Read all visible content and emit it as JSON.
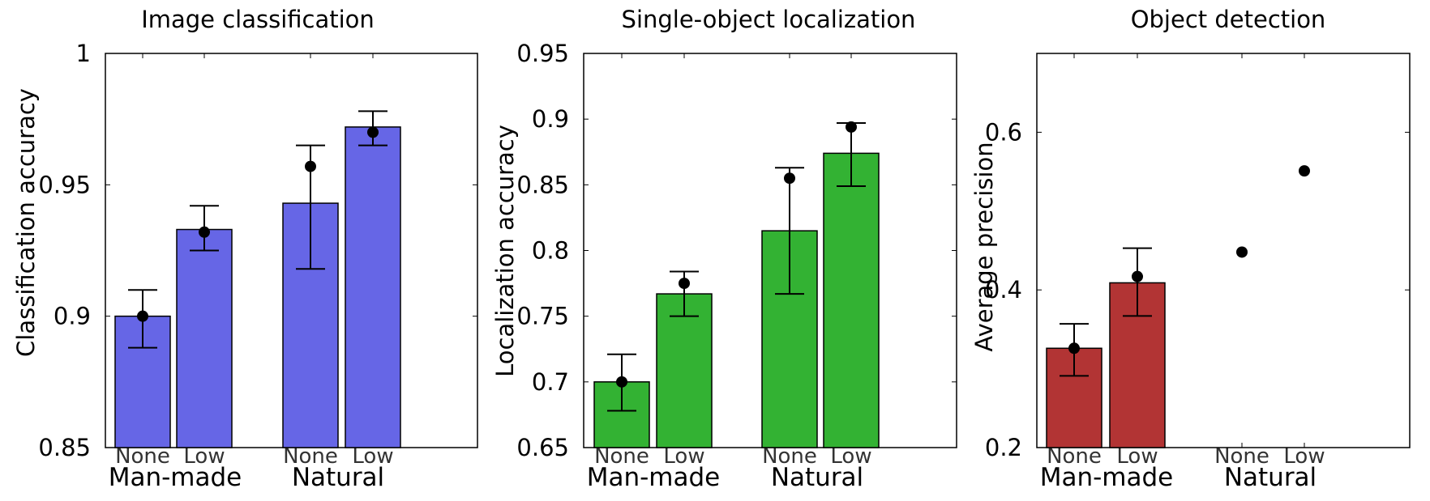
{
  "colors": {
    "classification": "#6666e6",
    "localization": "#33b233",
    "detection": "#b23434",
    "marker": "#000000"
  },
  "chart_data": [
    {
      "type": "bar",
      "title": "Image classification",
      "ylabel": "Classification accuracy",
      "ylim": [
        0.85,
        1.0
      ],
      "yticks": [
        0.85,
        0.9,
        0.95,
        1
      ],
      "ytick_labels": [
        "0.85",
        "0.9",
        "0.95",
        "1"
      ],
      "categories": [
        "None",
        "Low",
        "None",
        "Low"
      ],
      "groups": [
        "Man-made",
        "Natural"
      ],
      "series": [
        {
          "name": "bar",
          "values": [
            0.9,
            0.933,
            0.943,
            0.972
          ]
        },
        {
          "name": "marker",
          "values": [
            0.9,
            0.932,
            0.957,
            0.97
          ]
        },
        {
          "name": "error_low",
          "values": [
            0.888,
            0.925,
            0.918,
            0.965
          ]
        },
        {
          "name": "error_high",
          "values": [
            0.91,
            0.942,
            0.965,
            0.978
          ]
        }
      ]
    },
    {
      "type": "bar",
      "title": "Single-object localization",
      "ylabel": "Localization accuracy",
      "ylim": [
        0.65,
        0.95
      ],
      "yticks": [
        0.65,
        0.7,
        0.75,
        0.8,
        0.85,
        0.9,
        0.95
      ],
      "ytick_labels": [
        "0.65",
        "0.7",
        "0.75",
        "0.8",
        "0.85",
        "0.9",
        "0.95"
      ],
      "categories": [
        "None",
        "Low",
        "None",
        "Low"
      ],
      "groups": [
        "Man-made",
        "Natural"
      ],
      "series": [
        {
          "name": "bar",
          "values": [
            0.7,
            0.767,
            0.815,
            0.874
          ]
        },
        {
          "name": "marker",
          "values": [
            0.7,
            0.775,
            0.855,
            0.894
          ]
        },
        {
          "name": "error_low",
          "values": [
            0.678,
            0.75,
            0.767,
            0.849
          ]
        },
        {
          "name": "error_high",
          "values": [
            0.721,
            0.784,
            0.863,
            0.897
          ]
        }
      ]
    },
    {
      "type": "bar",
      "title": "Object detection",
      "ylabel": "Average precision",
      "ylim": [
        0.2,
        0.7
      ],
      "yticks": [
        0.2,
        0.4,
        0.6
      ],
      "ytick_labels": [
        "0.2",
        "0.4",
        "0.6"
      ],
      "categories": [
        "None",
        "Low",
        "None",
        "Low"
      ],
      "groups": [
        "Man-made",
        "Natural"
      ],
      "series": [
        {
          "name": "bar",
          "values": [
            0.326,
            0.409,
            null,
            null
          ]
        },
        {
          "name": "marker",
          "values": [
            0.326,
            0.417,
            0.448,
            0.551
          ]
        },
        {
          "name": "error_low",
          "values": [
            0.291,
            0.367,
            null,
            null
          ]
        },
        {
          "name": "error_high",
          "values": [
            0.357,
            0.453,
            null,
            null
          ]
        }
      ]
    }
  ]
}
